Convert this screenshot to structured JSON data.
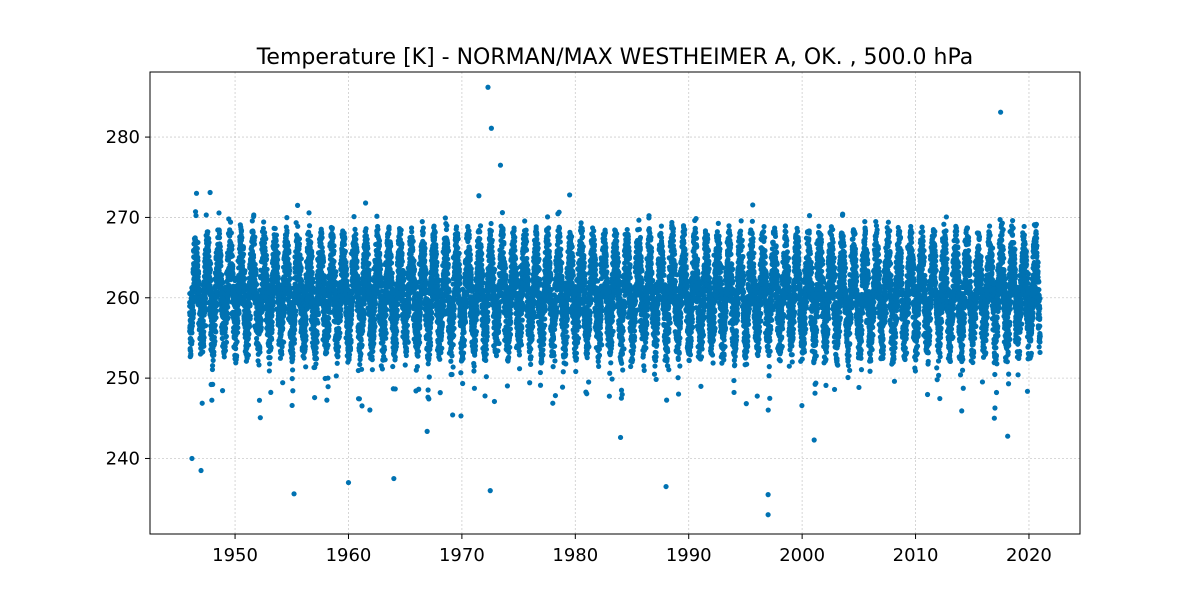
{
  "chart_data": {
    "type": "scatter",
    "title": "Temperature [K] - NORMAN/MAX WESTHEIMER A, OK. , 500.0  hPa",
    "xlabel": "",
    "ylabel": "",
    "x_domain": [
      1942.5,
      2024.5
    ],
    "ylim": [
      230.6,
      288.1
    ],
    "xticks": [
      1950,
      1960,
      1970,
      1980,
      1990,
      2000,
      2010,
      2020
    ],
    "yticks": [
      240,
      250,
      260,
      270,
      280
    ],
    "grid": true,
    "color": "#0072b2",
    "start_year": 1946.0,
    "end_year": 2021.0,
    "seasonal_cycle": {
      "annual_mean": 260.5,
      "amplitude": 4.5,
      "spread_min": 253.5,
      "spread_max": 268.5
    },
    "outliers": [
      {
        "x": 1972.3,
        "y": 286.2
      },
      {
        "x": 1972.6,
        "y": 281.1
      },
      {
        "x": 1973.4,
        "y": 276.5
      },
      {
        "x": 1971.5,
        "y": 272.7
      },
      {
        "x": 1979.5,
        "y": 272.8
      },
      {
        "x": 1946.6,
        "y": 273.0
      },
      {
        "x": 1947.8,
        "y": 273.1
      },
      {
        "x": 2017.5,
        "y": 283.1
      },
      {
        "x": 1955.2,
        "y": 235.6
      },
      {
        "x": 1997.0,
        "y": 235.5
      },
      {
        "x": 1997.0,
        "y": 233.0
      },
      {
        "x": 1972.5,
        "y": 236.0
      },
      {
        "x": 1960.0,
        "y": 237.0
      },
      {
        "x": 1988.0,
        "y": 236.5
      },
      {
        "x": 1964.0,
        "y": 237.5
      },
      {
        "x": 1946.2,
        "y": 240.0
      },
      {
        "x": 1947.0,
        "y": 238.5
      }
    ]
  }
}
